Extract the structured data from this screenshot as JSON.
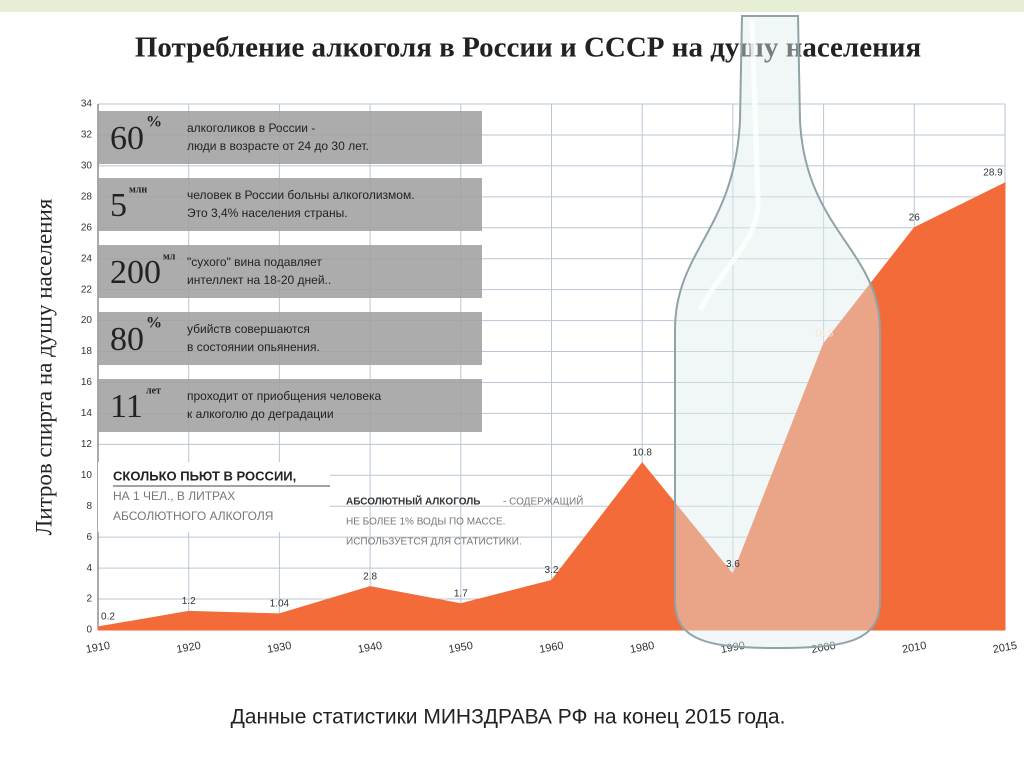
{
  "chart_data": {
    "type": "area",
    "title": "Потребление алкоголя в России и СССР на душу населения",
    "y_label": "Литров спирта на душу населения",
    "categories": [
      "1910",
      "1920",
      "1930",
      "1940",
      "1950",
      "1960",
      "1980",
      "1990",
      "2000",
      "2010",
      "2015"
    ],
    "values": [
      0.2,
      1.2,
      1.04,
      2.8,
      1.7,
      3.2,
      10.8,
      3.6,
      18.5,
      26,
      28.9
    ],
    "color": "#f26b38",
    "ylim": [
      0,
      34
    ],
    "yticks": [
      0,
      2,
      4,
      6,
      8,
      10,
      12,
      14,
      16,
      18,
      20,
      22,
      24,
      26,
      28,
      30,
      32,
      34
    ],
    "grid": true,
    "facts": [
      {
        "number": "60",
        "unit": "%",
        "lines": [
          "алкоголиков в России -",
          "люди в возрасте от 24 до 30 лет."
        ]
      },
      {
        "number": "5",
        "unit": "млн",
        "lines": [
          "человек в России больны алкоголизмом.",
          "Это 3,4% населения страны."
        ]
      },
      {
        "number": "200",
        "unit": "мл",
        "lines": [
          "\"сухого\" вина подавляет",
          "интеллект на 18-20 дней.."
        ]
      },
      {
        "number": "80",
        "unit": "%",
        "lines": [
          "убийств совершаются",
          "в состоянии опьянения."
        ]
      },
      {
        "number": "11",
        "unit": "лет",
        "lines": [
          "проходит от приобщения человека",
          "к алкоголю до деградации"
        ]
      }
    ],
    "annotations": {
      "how_much_title": "СКОЛЬКО ПЬЮТ В РОССИИ,",
      "how_much_lines": [
        "НА 1 ЧЕЛ., В ЛИТРАХ",
        "АБСОЛЮТНОГО АЛКОГОЛЯ"
      ],
      "absolute_term": "АБСОЛЮТНЫЙ АЛКОГОЛЬ",
      "absolute_lines": [
        "- СОДЕРЖАЩИЙ",
        "НЕ БОЛЕЕ 1% ВОДЫ ПО МАССЕ.",
        "ИСПОЛЬЗУЕТСЯ ДЛЯ СТАТИСТИКИ."
      ]
    },
    "source": "Данные статистики МИНЗДРАВА РФ на конец 2015 года."
  }
}
